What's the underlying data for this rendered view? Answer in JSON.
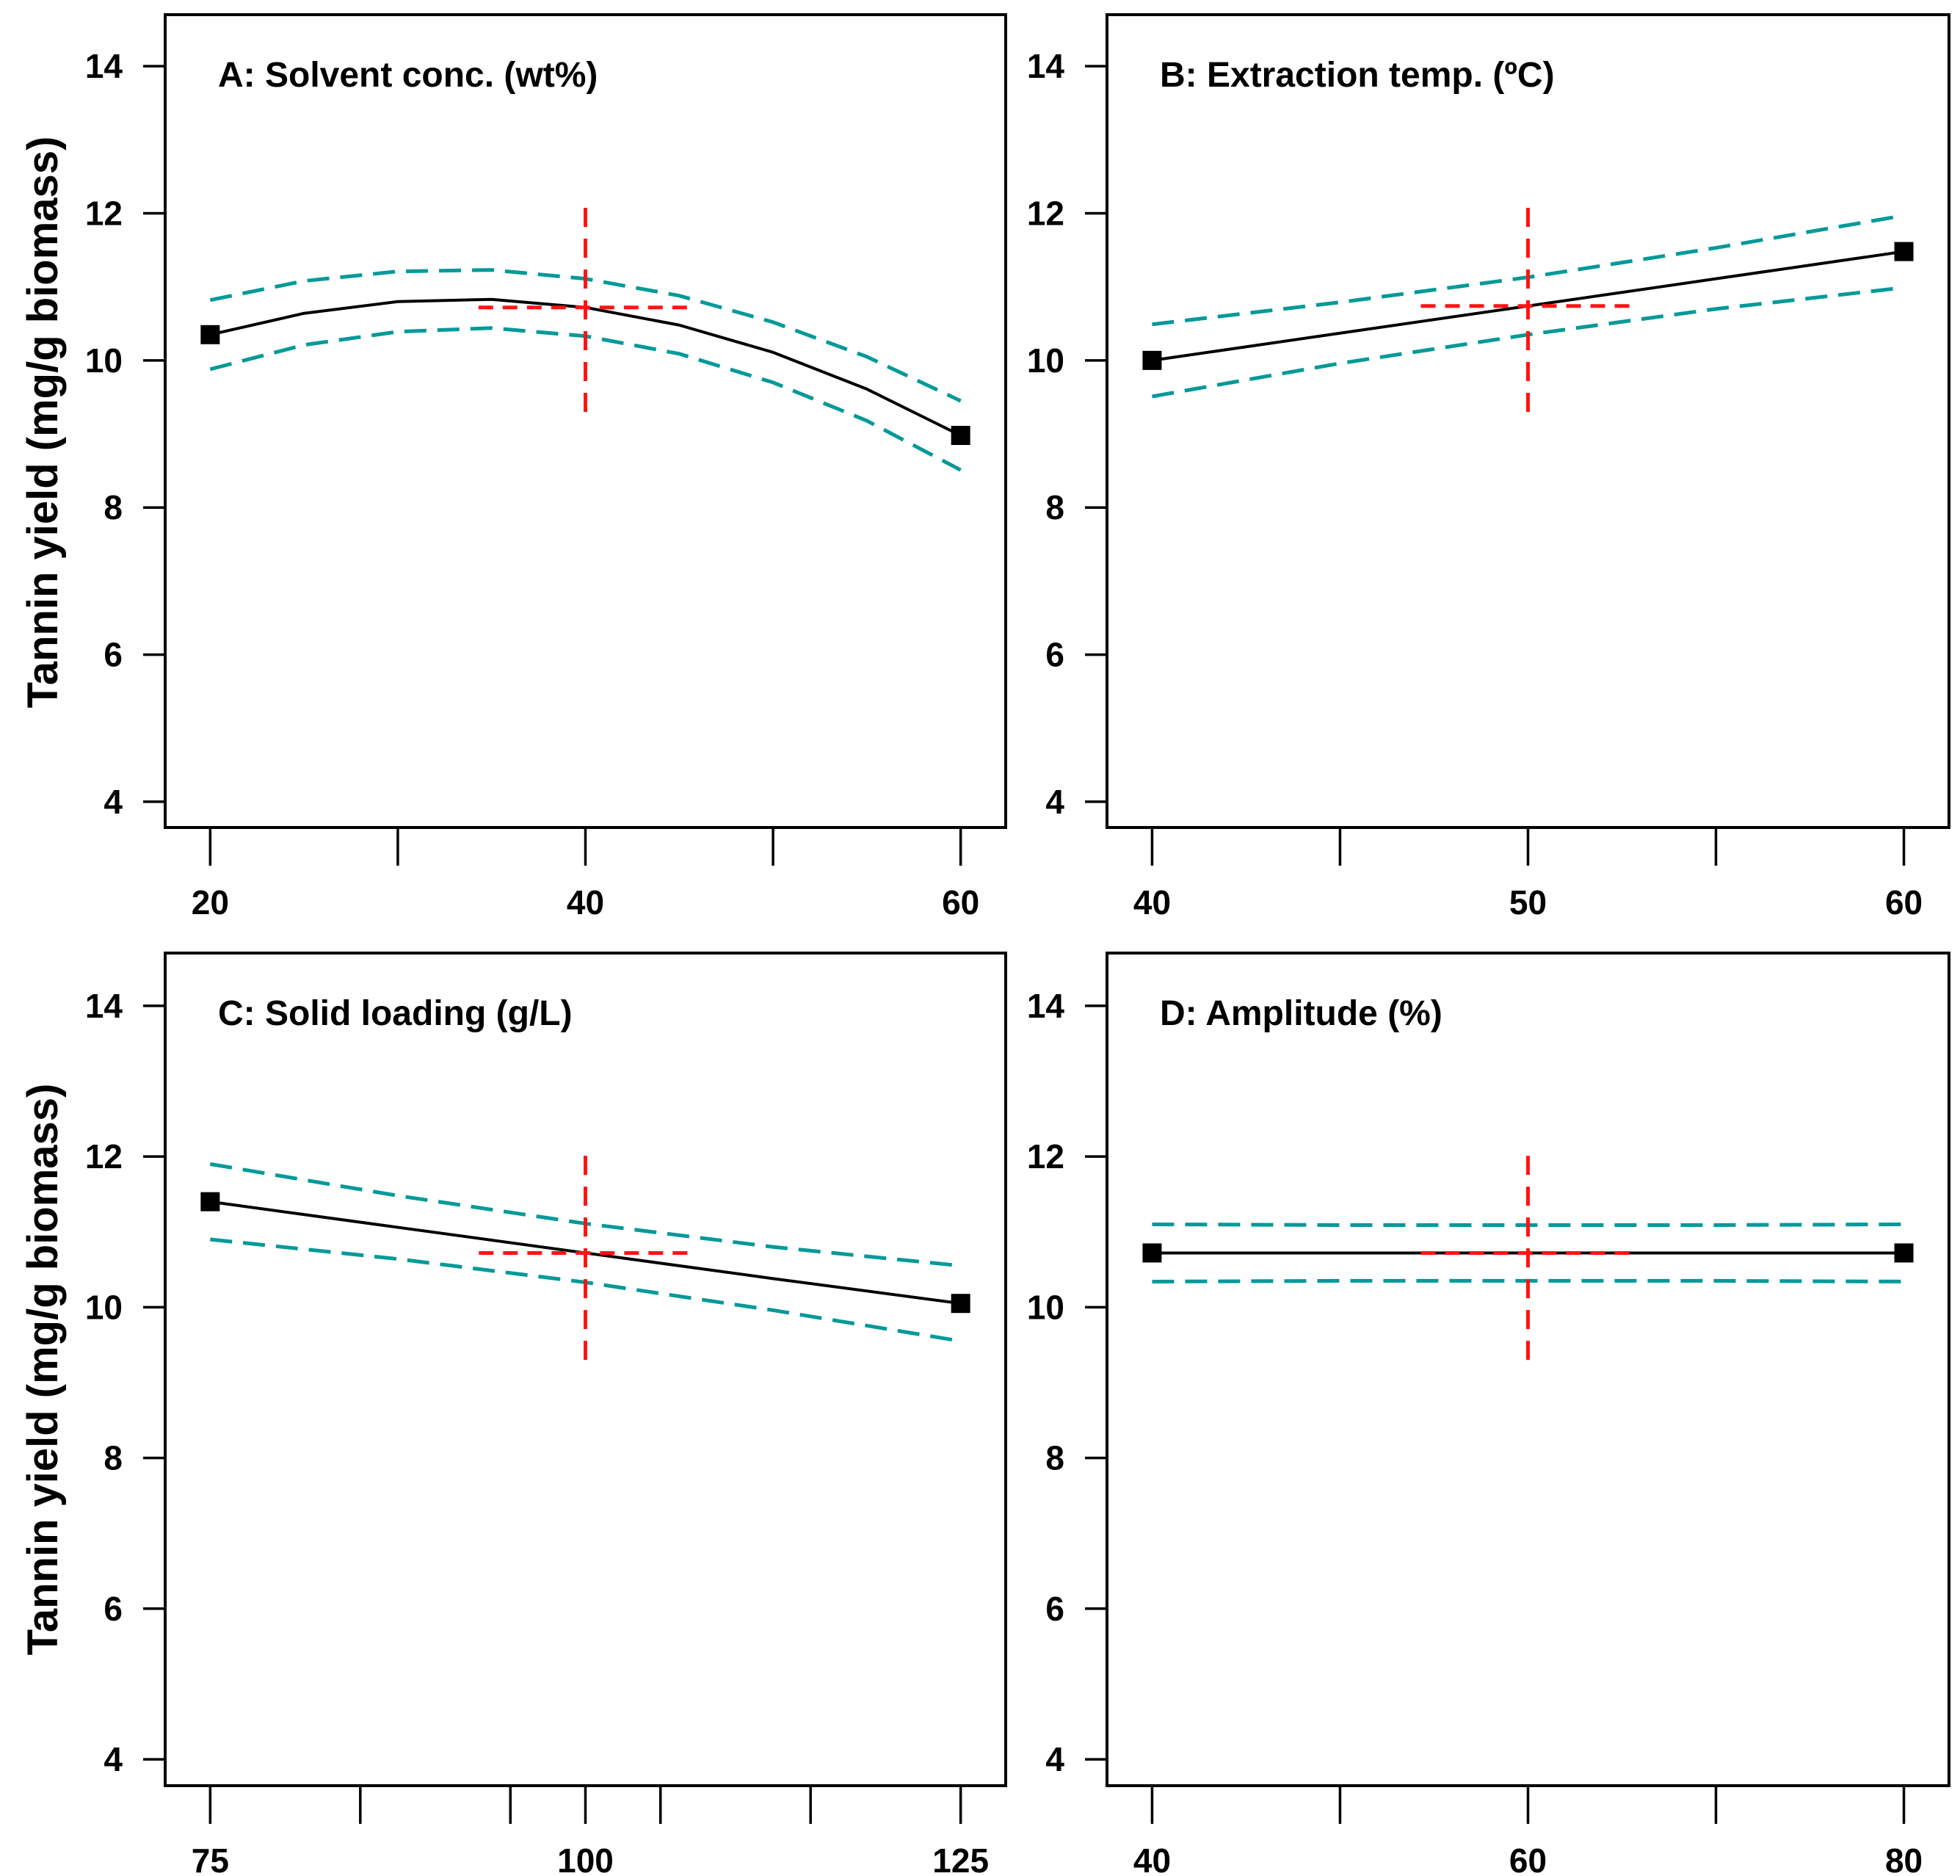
{
  "figure": {
    "ylabel": "Tannin yield (mg/g biomass)",
    "y_axis": {
      "ticks": [
        4,
        6,
        8,
        10,
        12,
        14
      ],
      "range": [
        3.65,
        14.7
      ]
    },
    "colors": {
      "mean_line": "#000000",
      "ci_band": "#009999",
      "center_cross": "#FF1414",
      "marker": "#000000",
      "axis": "#000000"
    }
  },
  "chart_data": [
    {
      "id": "A",
      "type": "line",
      "title": "A: Solvent conc. (wt%)",
      "xlabel_ticks": [
        20,
        40,
        60
      ],
      "minor_ticks": [
        30,
        50
      ],
      "xlim": [
        17.6,
        62.4
      ],
      "x": [
        20,
        25,
        30,
        35,
        40,
        45,
        50,
        55,
        60
      ],
      "mean": [
        10.35,
        10.64,
        10.8,
        10.83,
        10.72,
        10.48,
        10.11,
        9.61,
        8.98
      ],
      "ci_upper": [
        10.82,
        11.08,
        11.21,
        11.23,
        11.11,
        10.88,
        10.52,
        10.05,
        9.45
      ],
      "ci_lower": [
        9.88,
        10.21,
        10.39,
        10.44,
        10.33,
        10.09,
        9.7,
        9.18,
        8.51
      ],
      "endpoints": [
        [
          20,
          10.35
        ],
        [
          60,
          8.98
        ]
      ],
      "center": {
        "x": 40,
        "y": 10.72
      },
      "cross_x_range": [
        34.3,
        45.7
      ],
      "cross_y_range": [
        9.3,
        12.1
      ]
    },
    {
      "id": "B",
      "type": "line",
      "title": "B: Extraction temp. (ºC)",
      "xlabel_ticks": [
        40,
        50,
        60
      ],
      "minor_ticks": [
        45,
        55
      ],
      "xlim": [
        38.8,
        61.2
      ],
      "x": [
        40,
        45,
        50,
        55,
        60
      ],
      "mean": [
        10.0,
        10.37,
        10.74,
        11.11,
        11.48
      ],
      "ci_upper": [
        10.49,
        10.79,
        11.13,
        11.53,
        11.97
      ],
      "ci_lower": [
        9.51,
        9.96,
        10.35,
        10.7,
        10.99
      ],
      "endpoints": [
        [
          40,
          10.0
        ],
        [
          60,
          11.48
        ]
      ],
      "center": {
        "x": 50,
        "y": 10.74
      },
      "cross_x_range": [
        47.15,
        52.85
      ],
      "cross_y_range": [
        9.3,
        12.1
      ]
    },
    {
      "id": "C",
      "type": "line",
      "title": "C: Solid loading (g/L)",
      "xlabel_ticks": [
        75,
        100,
        125
      ],
      "minor_ticks": [
        85,
        95,
        105,
        115
      ],
      "xlim": [
        72,
        128
      ],
      "x": [
        75,
        87.5,
        100,
        112.5,
        125
      ],
      "mean": [
        11.4,
        11.06,
        10.72,
        10.38,
        10.05
      ],
      "ci_upper": [
        11.9,
        11.48,
        11.11,
        10.8,
        10.55
      ],
      "ci_lower": [
        10.9,
        10.64,
        10.33,
        9.96,
        9.55
      ],
      "endpoints": [
        [
          75,
          11.4
        ],
        [
          125,
          10.05
        ]
      ],
      "center": {
        "x": 100,
        "y": 10.72
      },
      "cross_x_range": [
        92.9,
        107.1
      ],
      "cross_y_range": [
        9.3,
        12.1
      ]
    },
    {
      "id": "D",
      "type": "line",
      "title": "D: Amplitude (%)",
      "xlabel_ticks": [
        40,
        60,
        80
      ],
      "minor_ticks": [
        50,
        70
      ],
      "xlim": [
        37.6,
        82.4
      ],
      "x": [
        40,
        50,
        60,
        70,
        80
      ],
      "mean": [
        10.72,
        10.72,
        10.72,
        10.72,
        10.72
      ],
      "ci_upper": [
        11.1,
        11.09,
        11.09,
        11.09,
        11.1
      ],
      "ci_lower": [
        10.34,
        10.35,
        10.35,
        10.35,
        10.34
      ],
      "endpoints": [
        [
          40,
          10.72
        ],
        [
          80,
          10.72
        ]
      ],
      "center": {
        "x": 60,
        "y": 10.72
      },
      "cross_x_range": [
        54.3,
        65.7
      ],
      "cross_y_range": [
        9.3,
        12.1
      ]
    }
  ]
}
